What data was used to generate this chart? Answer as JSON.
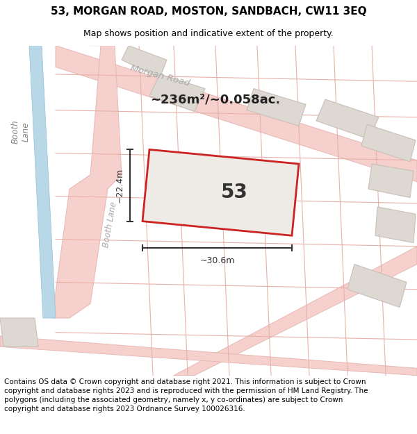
{
  "title": "53, MORGAN ROAD, MOSTON, SANDBACH, CW11 3EQ",
  "subtitle": "Map shows position and indicative extent of the property.",
  "footer": "Contains OS data © Crown copyright and database right 2021. This information is subject to Crown copyright and database rights 2023 and is reproduced with the permission of HM Land Registry. The polygons (including the associated geometry, namely x, y co-ordinates) are subject to Crown copyright and database rights 2023 Ordnance Survey 100026316.",
  "area_label": "~236m²/~0.058ac.",
  "plot_number": "53",
  "width_label": "~30.6m",
  "height_label": "~22.4m",
  "map_bg": "#f0eeea",
  "road_fill": "#f5d0cc",
  "road_edge": "#e8b8b5",
  "bldg_fill": "#ddd8d2",
  "bldg_edge": "#c8c0b8",
  "parcel_edge": "#e8b0a8",
  "highlight_color": "#cc2222",
  "water_fill": "#b8d8e8",
  "water_edge": "#90c0d8",
  "title_fontsize": 11,
  "subtitle_fontsize": 9,
  "footer_fontsize": 7.5,
  "road_label_color": "#aaaaaa",
  "dim_color": "#333333"
}
